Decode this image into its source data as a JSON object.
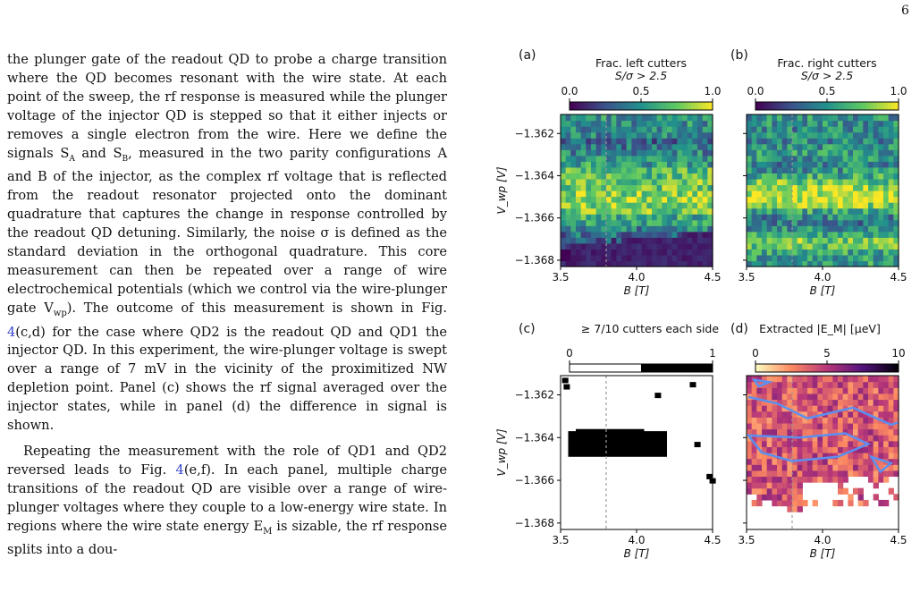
{
  "page_number": "6",
  "body": {
    "p1": {
      "a": "the plunger gate of the readout QD to probe a charge transition where the QD becomes resonant with the wire state. At each point of the sweep, the rf response is measured while the plunger voltage of the injector QD is stepped so that it either injects or removes a single electron from the wire. Here we define the signals S",
      "sub_a": "A",
      "b": " and S",
      "sub_b": "B",
      "c": ", measured in the two parity configurations A and B of the injector, as the complex rf voltage that is reflected from the readout resonator projected onto the dominant quadrature that captures the change in response controlled by the readout QD detuning. Similarly, the noise σ is defined as the standard deviation in the orthogonal quadrature. This core measurement can then be repeated over a range of wire electrochemical potentials (which we control via the wire-plunger gate V",
      "sub_wp": "wp",
      "d": "). The outcome of this measurement is shown in Fig. ",
      "ref1": "4",
      "e": "(c,d) for the case where QD2 is the readout QD and QD1 the injector QD. In this experiment, the wire-plunger voltage is swept over a range of 7 mV in the vicinity of the proximitized NW depletion point. Panel (c) shows the rf signal averaged over the injector states, while in panel (d) the difference in signal is shown."
    },
    "p2": {
      "a": "Repeating the measurement with the role of QD1 and QD2 reversed leads to Fig. ",
      "ref2": "4",
      "b": "(e,f). In each panel, multiple charge transitions of the readout QD are visible over a range of wire-plunger voltages where they couple to a low-energy wire state. In regions where the wire state energy E",
      "sub_m": "M",
      "c": " is sizable, the rf response splits into a dou-"
    }
  },
  "chart_data": [
    {
      "type": "heatmap",
      "panel": "(a)",
      "colorbar_title": "Frac. left cutters",
      "colorbar_subtitle": "S/σ > 2.5",
      "colorbar_ticks": [
        "0.0",
        "0.5",
        "1.0"
      ],
      "colorbar_range": [
        0,
        1
      ],
      "colormap": "viridis",
      "xlabel": "B [T]",
      "ylabel": "V_wp [V]",
      "x_ticks": [
        "3.5",
        "4.0",
        "4.5"
      ],
      "y_ticks": [
        "−1.362",
        "−1.364",
        "−1.366",
        "−1.368"
      ],
      "xlim": [
        3.5,
        4.5
      ],
      "ylim": [
        -1.3683,
        -1.3611
      ],
      "dashed_line_x": 3.8,
      "region_values_bottom_to_top": [
        0.05,
        0.05,
        0.15,
        0.3,
        0.35,
        0.45,
        0.55,
        0.6,
        0.75,
        0.8,
        0.85,
        0.8,
        0.75,
        0.75,
        0.7,
        0.7,
        0.55,
        0.5,
        0.45,
        0.4,
        0.35,
        0.45,
        0.45,
        0.5
      ]
    },
    {
      "type": "heatmap",
      "panel": "(b)",
      "colorbar_title": "Frac. right cutters",
      "colorbar_subtitle": "S/σ > 2.5",
      "colorbar_ticks": [
        "0.0",
        "0.5",
        "1.0"
      ],
      "colorbar_range": [
        0,
        1
      ],
      "colormap": "viridis",
      "xlabel": "B [T]",
      "x_ticks": [
        "3.5",
        "4.0",
        "4.5"
      ],
      "xlim": [
        3.5,
        4.5
      ],
      "ylim": [
        -1.3683,
        -1.3611
      ],
      "dashed_line_x": 3.8,
      "region_values_bottom_to_top": [
        0.55,
        0.6,
        0.7,
        0.75,
        0.6,
        0.5,
        0.4,
        0.45,
        0.6,
        0.8,
        0.9,
        0.9,
        0.85,
        0.75,
        0.6,
        0.5,
        0.45,
        0.5,
        0.55,
        0.5,
        0.45,
        0.5,
        0.45,
        0.5
      ]
    },
    {
      "type": "heatmap",
      "panel": "(c)",
      "colorbar_title": "≥ 7/10 cutters each side",
      "colorbar_ticks": [
        "0",
        "1"
      ],
      "colorbar_range": [
        0,
        1
      ],
      "colormap": "binary",
      "xlabel": "B [T]",
      "ylabel": "V_wp [V]",
      "x_ticks": [
        "3.5",
        "4.0",
        "4.5"
      ],
      "y_ticks": [
        "−1.362",
        "−1.364",
        "−1.366",
        "−1.368"
      ],
      "xlim": [
        3.5,
        4.5
      ],
      "ylim": [
        -1.3683,
        -1.3611
      ],
      "dashed_line_x": 3.8,
      "true_region": {
        "B_range": [
          3.55,
          4.2
        ],
        "Vwp_range": [
          -1.3649,
          -1.3637
        ]
      }
    },
    {
      "type": "heatmap",
      "panel": "(d)",
      "colorbar_title": "Extracted |E_M| [μeV]",
      "colorbar_ticks": [
        "0",
        "5",
        "10"
      ],
      "colorbar_range": [
        0,
        10
      ],
      "colormap": "magma_r",
      "xlabel": "B [T]",
      "x_ticks": [
        "3.5",
        "4.0",
        "4.5"
      ],
      "xlim": [
        3.5,
        4.5
      ],
      "ylim": [
        -1.3683,
        -1.3611
      ],
      "dashed_line_x": 3.8,
      "contour_color": "#5b8ff0",
      "typical_value": 4
    }
  ]
}
